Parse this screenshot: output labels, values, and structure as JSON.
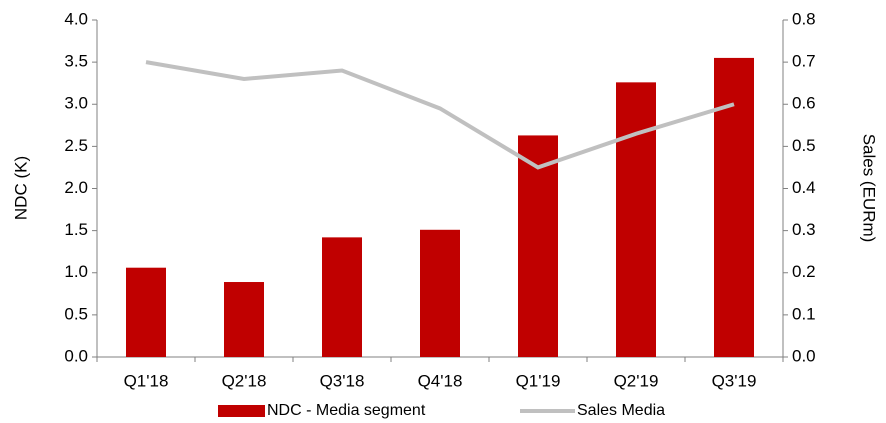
{
  "chart_data": {
    "type": "bar",
    "categories": [
      "Q1'18",
      "Q2'18",
      "Q3'18",
      "Q4'18",
      "Q1'19",
      "Q2'19",
      "Q3'19"
    ],
    "series": [
      {
        "name": "NDC - Media segment",
        "color": "#c00000",
        "values": [
          1.06,
          0.89,
          1.42,
          1.51,
          2.63,
          3.26,
          3.55
        ]
      },
      {
        "name": "Sales Media",
        "color": "#c0c0c0",
        "type": "line",
        "axis": "y2",
        "values": [
          0.7,
          0.66,
          0.68,
          0.59,
          0.45,
          0.53,
          0.6
        ]
      }
    ],
    "ylabel": "NDC (K)",
    "y2label": "Sales (EURm)",
    "ylim": [
      0,
      4
    ],
    "yticks": [
      {
        "value": 0,
        "label": "0.0"
      },
      0.5,
      {
        "value": 1,
        "label": "1.0"
      },
      1.5,
      {
        "value": 2,
        "label": "2.0"
      },
      2.5,
      {
        "value": 3,
        "label": "3.0"
      },
      3.5,
      {
        "value": 4,
        "label": "4.0"
      }
    ],
    "y2lim": [
      0,
      0.8
    ],
    "y2ticks": [
      {
        "value": 0,
        "label": "0.0"
      },
      0.1,
      0.2,
      0.3,
      0.4,
      0.5,
      0.6,
      0.7,
      0.8
    ],
    "grid": false,
    "legend": "bottom"
  }
}
